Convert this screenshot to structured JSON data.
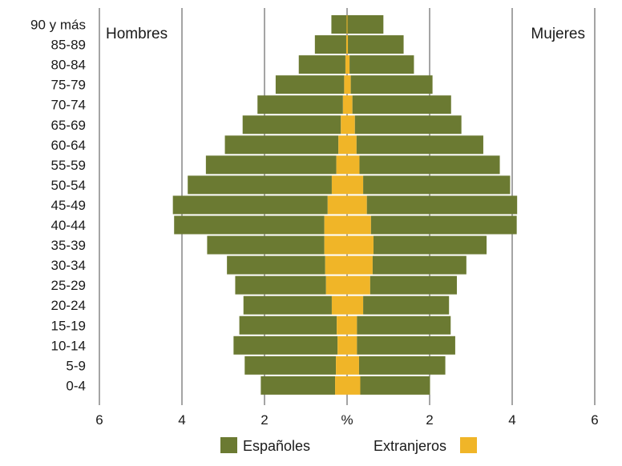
{
  "chart_data": {
    "type": "bar",
    "subtype": "population-pyramid",
    "title": "",
    "xlabel": "%",
    "left_title": "Hombres",
    "right_title": "Mujeres",
    "xlim": [
      -6,
      6
    ],
    "x_ticks": [
      {
        "value": -6,
        "label": "6"
      },
      {
        "value": -4,
        "label": "4"
      },
      {
        "value": -2,
        "label": "2"
      },
      {
        "value": 0,
        "label": "%"
      },
      {
        "value": 2,
        "label": "2"
      },
      {
        "value": 4,
        "label": "4"
      },
      {
        "value": 6,
        "label": "6"
      }
    ],
    "grid": true,
    "stacked": true,
    "categories": [
      "90 y más",
      "85-89",
      "80-84",
      "75-79",
      "70-74",
      "65-69",
      "60-64",
      "55-59",
      "50-54",
      "45-49",
      "40-44",
      "35-39",
      "30-34",
      "25-29",
      "20-24",
      "15-19",
      "10-14",
      "5-9",
      "0-4"
    ],
    "series": [
      {
        "name": "Españoles",
        "color": "#6b7a32",
        "men": [
          0.37,
          0.76,
          1.13,
          1.66,
          2.07,
          2.38,
          2.75,
          3.16,
          3.49,
          3.75,
          3.64,
          2.84,
          2.38,
          2.2,
          2.14,
          2.36,
          2.52,
          2.21,
          1.8
        ],
        "women": [
          0.87,
          1.35,
          1.56,
          1.98,
          2.39,
          2.58,
          3.07,
          3.4,
          3.56,
          3.64,
          3.53,
          2.74,
          2.27,
          2.1,
          2.08,
          2.27,
          2.38,
          2.09,
          1.69
        ]
      },
      {
        "name": "Extranjeros",
        "color": "#f0b528",
        "men": [
          0.01,
          0.02,
          0.04,
          0.07,
          0.1,
          0.15,
          0.21,
          0.26,
          0.37,
          0.47,
          0.55,
          0.55,
          0.53,
          0.51,
          0.37,
          0.25,
          0.23,
          0.27,
          0.29
        ],
        "women": [
          0.01,
          0.02,
          0.06,
          0.09,
          0.13,
          0.19,
          0.23,
          0.3,
          0.39,
          0.48,
          0.58,
          0.64,
          0.62,
          0.56,
          0.39,
          0.24,
          0.24,
          0.29,
          0.32
        ]
      }
    ],
    "legend": {
      "placement": "bottom",
      "items": [
        {
          "label": "Españoles",
          "color": "#6b7a32"
        },
        {
          "label": "Extranjeros",
          "color": "#f0b528"
        }
      ]
    }
  }
}
